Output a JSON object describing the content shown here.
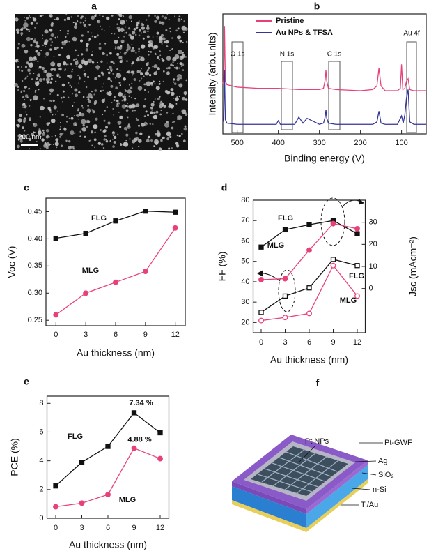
{
  "panel_a": {
    "label": "a",
    "scale_bar": "200 nm"
  },
  "chart_data": [
    {
      "type": "line",
      "panel_label": "b",
      "x_label": "Binding energy (V)",
      "y_label": "Intensity (arb.units)",
      "xlim": [
        535,
        40
      ],
      "xticks": [
        500,
        400,
        300,
        200,
        100
      ],
      "ylim": [
        0,
        100
      ],
      "legend": "upper center",
      "annotations": [
        "O 1s",
        "N 1s",
        "C 1s",
        "Au 4f"
      ],
      "series": [
        {
          "name": "Pristine",
          "color": "#e8417a",
          "marker": "none",
          "x": [
            535,
            533,
            531,
            529,
            525,
            500,
            450,
            400,
            350,
            300,
            290,
            286,
            284,
            282,
            278,
            260,
            200,
            170,
            160,
            155,
            150,
            140,
            110,
            103,
            100,
            97,
            92,
            88,
            84,
            80,
            70,
            40
          ],
          "values": [
            42,
            45,
            90,
            44,
            41,
            39,
            38,
            38,
            37,
            37,
            38,
            45,
            53,
            44,
            38,
            37,
            36,
            37,
            40,
            55,
            40,
            36,
            36,
            38,
            58,
            37,
            38,
            44,
            46,
            37,
            36,
            36
          ]
        },
        {
          "name": "Au NPs & TFSA",
          "color": "#34349a",
          "marker": "none",
          "x": [
            535,
            533,
            531,
            529,
            525,
            500,
            450,
            405,
            400,
            395,
            360,
            350,
            340,
            330,
            300,
            290,
            286,
            284,
            282,
            278,
            260,
            200,
            170,
            160,
            155,
            150,
            140,
            110,
            100,
            96,
            92,
            88,
            84,
            80,
            70,
            40
          ],
          "values": [
            10,
            12,
            53,
            12,
            9,
            8,
            8,
            8,
            11,
            8,
            8,
            14,
            9,
            13,
            8,
            9,
            14,
            20,
            13,
            9,
            8,
            8,
            8,
            10,
            19,
            9,
            8,
            8,
            15,
            9,
            16,
            30,
            37,
            10,
            8,
            8
          ]
        }
      ]
    },
    {
      "type": "line",
      "panel_label": "c",
      "x_label": "Au thickness (nm)",
      "y_label": "Voc (V)",
      "x": [
        0,
        3,
        6,
        9,
        12
      ],
      "xlim": [
        -1,
        13
      ],
      "xticks": [
        0,
        3,
        6,
        9,
        12
      ],
      "ylim": [
        0.24,
        0.475
      ],
      "yticks": [
        {
          "value": 0.25,
          "label": "0.25"
        },
        {
          "value": 0.3,
          "label": "0.30"
        },
        {
          "value": 0.35,
          "label": "0.35"
        },
        {
          "value": 0.4,
          "label": "0.40"
        },
        {
          "value": 0.45,
          "label": "0.45"
        }
      ],
      "series": [
        {
          "name": "FLG",
          "color": "#111111",
          "marker": "square",
          "marker_fill": "filled",
          "values": [
            0.401,
            0.41,
            0.433,
            0.451,
            0.449
          ]
        },
        {
          "name": "MLG",
          "color": "#e8417a",
          "marker": "circle",
          "marker_fill": "filled",
          "values": [
            0.26,
            0.3,
            0.32,
            0.34,
            0.42
          ]
        }
      ]
    },
    {
      "type": "line",
      "panel_label": "d",
      "x_label": "Au thickness (nm)",
      "y_label": "FF (%)",
      "y2_label": "Jsc (mAcm⁻²)",
      "x": [
        0,
        3,
        6,
        9,
        12
      ],
      "xlim": [
        -1,
        13
      ],
      "xticks": [
        0,
        3,
        6,
        9,
        12
      ],
      "ylim": [
        15,
        80
      ],
      "yticks": [
        20,
        30,
        40,
        50,
        60,
        70,
        80
      ],
      "y2lim": [
        -20,
        40
      ],
      "y2ticks": [
        0,
        10,
        20,
        30
      ],
      "series": [
        {
          "name": "FLG",
          "color": "#111111",
          "marker": "square",
          "marker_fill": "filled",
          "values": [
            57,
            65.5,
            68,
            70,
            63.5
          ]
        },
        {
          "name": "MLG",
          "color": "#e8417a",
          "marker": "circle",
          "marker_fill": "filled",
          "values": [
            41,
            41.5,
            55.5,
            68.5,
            66
          ]
        },
        {
          "name": "FLG",
          "color": "#111111",
          "marker": "square",
          "marker_fill": "hollow",
          "axis": "y2",
          "values": [
            -10.8,
            -3.4,
            0.3,
            13.2,
            10.4
          ]
        },
        {
          "name": "MLG",
          "color": "#e8417a",
          "marker": "circle",
          "marker_fill": "hollow",
          "axis": "y2",
          "values": [
            -14.5,
            -13.1,
            -11.3,
            10.4,
            -3.4
          ]
        }
      ]
    },
    {
      "type": "line",
      "panel_label": "e",
      "x_label": "Au thickness (nm)",
      "y_label": "PCE (%)",
      "x": [
        0,
        3,
        6,
        9,
        12
      ],
      "xlim": [
        -1,
        13
      ],
      "xticks": [
        0,
        3,
        6,
        9,
        12
      ],
      "ylim": [
        0,
        8.5
      ],
      "yticks": [
        0,
        2,
        4,
        6,
        8
      ],
      "series": [
        {
          "name": "FLG",
          "color": "#111111",
          "marker": "square",
          "marker_fill": "filled",
          "values": [
            2.25,
            3.9,
            5.0,
            7.34,
            5.95
          ],
          "value_labels": [
            null,
            null,
            null,
            "7.34 %",
            null
          ]
        },
        {
          "name": "MLG",
          "color": "#e8417a",
          "marker": "circle",
          "marker_fill": "filled",
          "values": [
            0.8,
            1.05,
            1.65,
            4.88,
            4.15
          ],
          "value_labels": [
            null,
            null,
            null,
            "4.88 %",
            null
          ]
        }
      ]
    }
  ],
  "panel_f": {
    "label": "f",
    "layers": [
      "Pt NPs",
      "Pt-GWF",
      "Ag",
      "SiO₂",
      "n-Si",
      "Ti/Au"
    ]
  }
}
